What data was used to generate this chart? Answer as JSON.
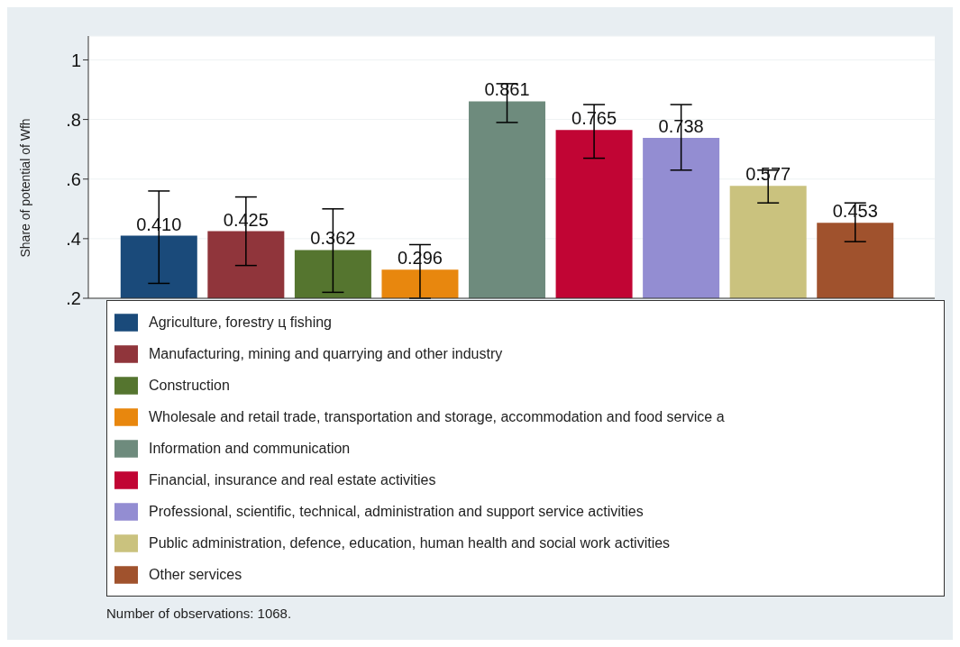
{
  "chart_data": {
    "type": "bar",
    "ylabel": "Share of potential of Wfh",
    "categories": [
      null,
      null,
      null,
      null,
      null,
      null,
      null,
      null,
      null
    ],
    "series": [
      {
        "name": "Agriculture, forestry ц fishing",
        "color": "#1a4a7a",
        "values": [
          0.41,
          null,
          null,
          null,
          null,
          null,
          null,
          null,
          null
        ],
        "value_labels": [
          "0.410",
          null,
          null,
          null,
          null,
          null,
          null,
          null,
          null
        ],
        "errors": [
          [
            0.25,
            0.56
          ],
          null,
          null,
          null,
          null,
          null,
          null,
          null,
          null
        ]
      },
      {
        "name": "Manufacturing, mining and quarrying and other industry",
        "color": "#90353b",
        "values": [
          null,
          0.425,
          null,
          null,
          null,
          null,
          null,
          null,
          null
        ],
        "value_labels": [
          null,
          "0.425",
          null,
          null,
          null,
          null,
          null,
          null,
          null
        ],
        "errors": [
          null,
          [
            0.31,
            0.54
          ],
          null,
          null,
          null,
          null,
          null,
          null,
          null
        ]
      },
      {
        "name": "Construction",
        "color": "#55752f",
        "values": [
          null,
          null,
          0.362,
          null,
          null,
          null,
          null,
          null,
          null
        ],
        "value_labels": [
          null,
          null,
          "0.362",
          null,
          null,
          null,
          null,
          null,
          null
        ],
        "errors": [
          null,
          null,
          [
            0.22,
            0.5
          ],
          null,
          null,
          null,
          null,
          null,
          null
        ]
      },
      {
        "name": "Wholesale and retail trade, transportation and storage, accommodation and food service a",
        "color": "#e8870e",
        "values": [
          null,
          null,
          null,
          0.296,
          null,
          null,
          null,
          null,
          null
        ],
        "value_labels": [
          null,
          null,
          null,
          "0.296",
          null,
          null,
          null,
          null,
          null
        ],
        "errors": [
          null,
          null,
          null,
          [
            0.2,
            0.38
          ],
          null,
          null,
          null,
          null,
          null
        ]
      },
      {
        "name": "Information and communication",
        "color": "#6e8b7d",
        "values": [
          null,
          null,
          null,
          null,
          0.861,
          null,
          null,
          null,
          null
        ],
        "value_labels": [
          null,
          null,
          null,
          null,
          "0.861",
          null,
          null,
          null,
          null
        ],
        "errors": [
          null,
          null,
          null,
          null,
          [
            0.79,
            0.92
          ],
          null,
          null,
          null,
          null
        ]
      },
      {
        "name": "Financial, insurance and real estate activities",
        "color": "#c10534",
        "values": [
          null,
          null,
          null,
          null,
          null,
          0.765,
          null,
          null,
          null
        ],
        "value_labels": [
          null,
          null,
          null,
          null,
          null,
          "0.765",
          null,
          null,
          null
        ],
        "errors": [
          null,
          null,
          null,
          null,
          null,
          [
            0.67,
            0.85
          ],
          null,
          null,
          null
        ]
      },
      {
        "name": "Professional, scientific, technical, administration and support service activities",
        "color": "#938dd2",
        "values": [
          null,
          null,
          null,
          null,
          null,
          null,
          0.738,
          null,
          null
        ],
        "value_labels": [
          null,
          null,
          null,
          null,
          null,
          null,
          "0.738",
          null,
          null
        ],
        "errors": [
          null,
          null,
          null,
          null,
          null,
          null,
          [
            0.63,
            0.85
          ],
          null,
          null
        ]
      },
      {
        "name": "Public administration, defence, education, human health and social work activities",
        "color": "#cac27e",
        "values": [
          null,
          null,
          null,
          null,
          null,
          null,
          null,
          0.577,
          null
        ],
        "value_labels": [
          null,
          null,
          null,
          null,
          null,
          null,
          null,
          "0.577",
          null
        ],
        "errors": [
          null,
          null,
          null,
          null,
          null,
          null,
          null,
          [
            0.52,
            0.63
          ],
          null
        ]
      },
      {
        "name": "Other services",
        "color": "#a0522d",
        "values": [
          null,
          null,
          null,
          null,
          null,
          null,
          null,
          null,
          0.453
        ],
        "value_labels": [
          null,
          null,
          null,
          null,
          null,
          null,
          null,
          null,
          "0.453"
        ],
        "errors": [
          null,
          null,
          null,
          null,
          null,
          null,
          null,
          null,
          [
            0.39,
            0.52
          ]
        ]
      }
    ],
    "ylim": [
      0.2,
      1.08
    ],
    "yticks": [
      {
        "value": 0.2,
        "label": ".2"
      },
      {
        "value": 0.4,
        "label": ".4"
      },
      {
        "value": 0.6,
        "label": ".6"
      },
      {
        "value": 0.8,
        "label": ".8"
      },
      {
        "value": 1,
        "label": "1"
      }
    ],
    "grid": "y",
    "legend": "bottom",
    "tick_labels": "y",
    "annotations": [
      "Number of observations: 1068."
    ]
  }
}
